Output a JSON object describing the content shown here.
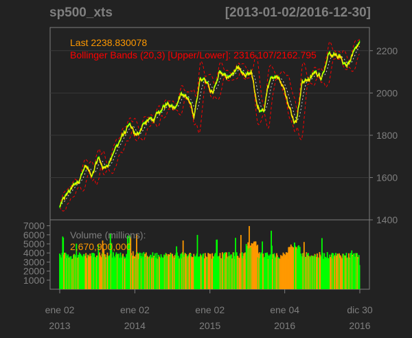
{
  "chart_data": {
    "type": "candlestick-volume",
    "symbol": "sp500_xts",
    "date_range": "[2013-01-02/2016-12-30]",
    "theme": "black",
    "price_panel": {
      "last_label": "Last 2238.830078",
      "bbands_label": "Bollinger Bands (20,3) [Upper/Lower]: 2316.107/2162.795",
      "ylim": [
        1400,
        2300
      ],
      "yticks": [
        1400,
        1600,
        1800,
        2000,
        2200
      ],
      "series": [
        {
          "date": "2013-01",
          "value": 1460
        },
        {
          "date": "2013-02",
          "value": 1515
        },
        {
          "date": "2013-03",
          "value": 1555
        },
        {
          "date": "2013-04",
          "value": 1590
        },
        {
          "date": "2013-05",
          "value": 1655
        },
        {
          "date": "2013-06",
          "value": 1605
        },
        {
          "date": "2013-07",
          "value": 1690
        },
        {
          "date": "2013-08",
          "value": 1640
        },
        {
          "date": "2013-09",
          "value": 1690
        },
        {
          "date": "2013-10",
          "value": 1755
        },
        {
          "date": "2013-11",
          "value": 1805
        },
        {
          "date": "2013-12",
          "value": 1845
        },
        {
          "date": "2014-01",
          "value": 1790
        },
        {
          "date": "2014-02",
          "value": 1855
        },
        {
          "date": "2014-03",
          "value": 1870
        },
        {
          "date": "2014-04",
          "value": 1880
        },
        {
          "date": "2014-05",
          "value": 1920
        },
        {
          "date": "2014-06",
          "value": 1960
        },
        {
          "date": "2014-07",
          "value": 1935
        },
        {
          "date": "2014-08",
          "value": 2000
        },
        {
          "date": "2014-09",
          "value": 1975
        },
        {
          "date": "2014-10",
          "value": 1890
        },
        {
          "date": "2014-11",
          "value": 2060
        },
        {
          "date": "2014-12",
          "value": 2060
        },
        {
          "date": "2015-01",
          "value": 2000
        },
        {
          "date": "2015-02",
          "value": 2100
        },
        {
          "date": "2015-03",
          "value": 2070
        },
        {
          "date": "2015-04",
          "value": 2090
        },
        {
          "date": "2015-05",
          "value": 2110
        },
        {
          "date": "2015-06",
          "value": 2070
        },
        {
          "date": "2015-07",
          "value": 2105
        },
        {
          "date": "2015-08",
          "value": 1920
        },
        {
          "date": "2015-09",
          "value": 1915
        },
        {
          "date": "2015-10",
          "value": 2080
        },
        {
          "date": "2015-11",
          "value": 2085
        },
        {
          "date": "2015-12",
          "value": 2040
        },
        {
          "date": "2016-01",
          "value": 1925
        },
        {
          "date": "2016-02",
          "value": 1865
        },
        {
          "date": "2016-03",
          "value": 2055
        },
        {
          "date": "2016-04",
          "value": 2065
        },
        {
          "date": "2016-05",
          "value": 2095
        },
        {
          "date": "2016-06",
          "value": 2080
        },
        {
          "date": "2016-07",
          "value": 2170
        },
        {
          "date": "2016-08",
          "value": 2175
        },
        {
          "date": "2016-09",
          "value": 2165
        },
        {
          "date": "2016-10",
          "value": 2125
        },
        {
          "date": "2016-11",
          "value": 2195
        },
        {
          "date": "2016-12",
          "value": 2240
        }
      ]
    },
    "volume_panel": {
      "label": "Volume (millions):",
      "last_value": "2,670,900,000",
      "ylim": [
        0,
        7500
      ],
      "yticks": [
        1000,
        2000,
        3000,
        4000,
        5000,
        6000,
        7000
      ]
    },
    "x_axis": {
      "ticks": [
        {
          "top": "ene 02",
          "bottom": "2013"
        },
        {
          "top": "ene 02",
          "bottom": "2014"
        },
        {
          "top": "ene 02",
          "bottom": "2015"
        },
        {
          "top": "ene 04",
          "bottom": "2016"
        },
        {
          "top": "dic 30",
          "bottom": "2016"
        }
      ]
    },
    "colors": {
      "background": "#222222",
      "up": "#00ff00",
      "down": "#ff9900",
      "price_line": "#ffff00",
      "bbands": "#ff0000",
      "ma": "#ffffff",
      "axis": "#7f7f7f",
      "grid": "#3a3a3a",
      "last_label": "#ff9900",
      "bbands_label": "#ff0000"
    }
  }
}
